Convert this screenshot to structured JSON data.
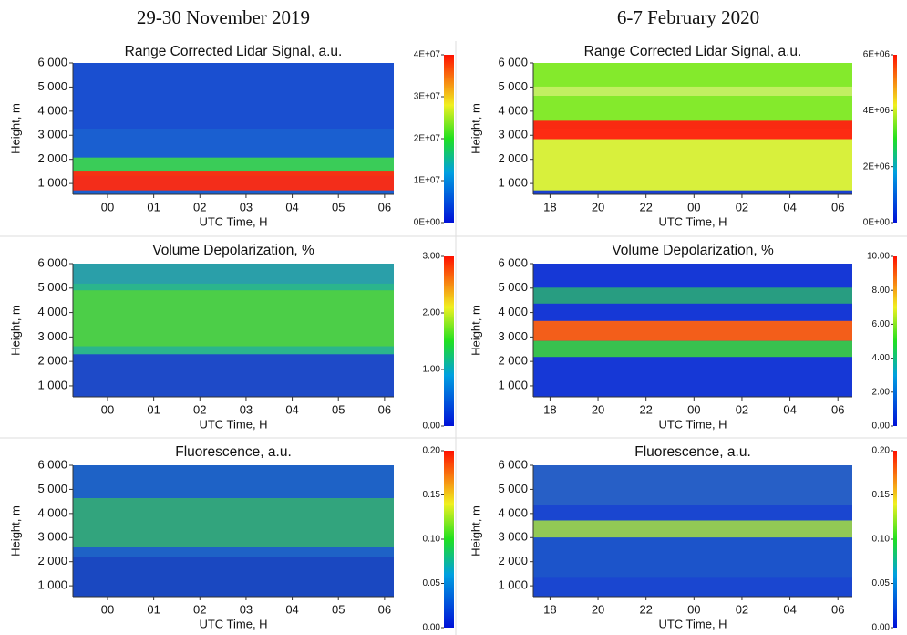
{
  "headers": [
    "29-30 November 2019",
    "6-7 February 2020"
  ],
  "chart_data": [
    {
      "type": "heatmap",
      "title": "Range Corrected Lidar Signal, a.u.",
      "xlabel": "UTC Time, H",
      "ylabel": "Height, m",
      "xlim": [
        -0.75,
        6.2
      ],
      "xticks": [
        {
          "value": 0,
          "label": "00"
        },
        {
          "value": 1,
          "label": "01"
        },
        {
          "value": 2,
          "label": "02"
        },
        {
          "value": 3,
          "label": "03"
        },
        {
          "value": 4,
          "label": "04"
        },
        {
          "value": 5,
          "label": "05"
        },
        {
          "value": 6,
          "label": "06"
        }
      ],
      "ylim": [
        550,
        6000
      ],
      "yticks": [
        {
          "value": 1000,
          "label": "1 000"
        },
        {
          "value": 2000,
          "label": "2 000"
        },
        {
          "value": 3000,
          "label": "3 000"
        },
        {
          "value": 4000,
          "label": "4 000"
        },
        {
          "value": 5000,
          "label": "5 000"
        },
        {
          "value": 6000,
          "label": "6 000"
        }
      ],
      "clim": [
        0,
        40000000
      ],
      "cticks": [
        {
          "value": 0,
          "label": "0E+00"
        },
        {
          "value": 10000000,
          "label": "1E+07"
        },
        {
          "value": 20000000,
          "label": "2E+07"
        },
        {
          "value": 30000000,
          "label": "3E+07"
        },
        {
          "value": 40000000,
          "label": "4E+07"
        }
      ]
    },
    {
      "type": "heatmap",
      "title": "Range Corrected Lidar Signal, a.u.",
      "xlabel": "UTC Time, H",
      "ylabel": "Height, m",
      "xlim": [
        17.3,
        30.6
      ],
      "xticks": [
        18,
        20,
        22,
        {
          "value": 24,
          "label": "00"
        },
        {
          "value": 26,
          "label": "02"
        },
        {
          "value": 28,
          "label": "04"
        },
        {
          "value": 30,
          "label": "06"
        }
      ],
      "ylim": [
        550,
        6000
      ],
      "yticks": [
        {
          "value": 1000,
          "label": "1 000"
        },
        {
          "value": 2000,
          "label": "2 000"
        },
        {
          "value": 3000,
          "label": "3 000"
        },
        {
          "value": 4000,
          "label": "4 000"
        },
        {
          "value": 5000,
          "label": "5 000"
        },
        {
          "value": 6000,
          "label": "6 000"
        }
      ],
      "clim": [
        0,
        6000000
      ],
      "cticks": [
        {
          "value": 0,
          "label": "0E+00"
        },
        {
          "value": 2000000,
          "label": "2E+06"
        },
        {
          "value": 4000000,
          "label": "4E+06"
        },
        {
          "value": 6000000,
          "label": "6E+06"
        }
      ]
    },
    {
      "type": "heatmap",
      "title": "Volume Depolarization, %",
      "xlabel": "UTC Time, H",
      "ylabel": "Height, m",
      "xlim": [
        -0.75,
        6.2
      ],
      "xticks": [
        {
          "value": 0,
          "label": "00"
        },
        {
          "value": 1,
          "label": "01"
        },
        {
          "value": 2,
          "label": "02"
        },
        {
          "value": 3,
          "label": "03"
        },
        {
          "value": 4,
          "label": "04"
        },
        {
          "value": 5,
          "label": "05"
        },
        {
          "value": 6,
          "label": "06"
        }
      ],
      "ylim": [
        550,
        6000
      ],
      "yticks": [
        {
          "value": 1000,
          "label": "1 000"
        },
        {
          "value": 2000,
          "label": "2 000"
        },
        {
          "value": 3000,
          "label": "3 000"
        },
        {
          "value": 4000,
          "label": "4 000"
        },
        {
          "value": 5000,
          "label": "5 000"
        },
        {
          "value": 6000,
          "label": "6 000"
        }
      ],
      "clim": [
        0,
        3
      ],
      "cticks": [
        {
          "value": 0,
          "label": "0.00"
        },
        {
          "value": 1,
          "label": "1.00"
        },
        {
          "value": 2,
          "label": "2.00"
        },
        {
          "value": 3,
          "label": "3.00"
        }
      ]
    },
    {
      "type": "heatmap",
      "title": "Volume Depolarization, %",
      "xlabel": "UTC Time, H",
      "ylabel": "Height, m",
      "xlim": [
        17.3,
        30.6
      ],
      "xticks": [
        18,
        20,
        22,
        {
          "value": 24,
          "label": "00"
        },
        {
          "value": 26,
          "label": "02"
        },
        {
          "value": 28,
          "label": "04"
        },
        {
          "value": 30,
          "label": "06"
        }
      ],
      "ylim": [
        550,
        6000
      ],
      "yticks": [
        {
          "value": 1000,
          "label": "1 000"
        },
        {
          "value": 2000,
          "label": "2 000"
        },
        {
          "value": 3000,
          "label": "3 000"
        },
        {
          "value": 4000,
          "label": "4 000"
        },
        {
          "value": 5000,
          "label": "5 000"
        },
        {
          "value": 6000,
          "label": "6 000"
        }
      ],
      "clim": [
        0,
        10
      ],
      "cticks": [
        {
          "value": 0,
          "label": "0.00"
        },
        {
          "value": 2,
          "label": "2.00"
        },
        {
          "value": 4,
          "label": "4.00"
        },
        {
          "value": 6,
          "label": "6.00"
        },
        {
          "value": 8,
          "label": "8.00"
        },
        {
          "value": 10,
          "label": "10.00"
        }
      ]
    },
    {
      "type": "heatmap",
      "title": "Fluorescence, a.u.",
      "xlabel": "UTC Time, H",
      "ylabel": "Height, m",
      "xlim": [
        -0.75,
        6.2
      ],
      "xticks": [
        {
          "value": 0,
          "label": "00"
        },
        {
          "value": 1,
          "label": "01"
        },
        {
          "value": 2,
          "label": "02"
        },
        {
          "value": 3,
          "label": "03"
        },
        {
          "value": 4,
          "label": "04"
        },
        {
          "value": 5,
          "label": "05"
        },
        {
          "value": 6,
          "label": "06"
        }
      ],
      "ylim": [
        550,
        6000
      ],
      "yticks": [
        {
          "value": 1000,
          "label": "1 000"
        },
        {
          "value": 2000,
          "label": "2 000"
        },
        {
          "value": 3000,
          "label": "3 000"
        },
        {
          "value": 4000,
          "label": "4 000"
        },
        {
          "value": 5000,
          "label": "5 000"
        },
        {
          "value": 6000,
          "label": "6 000"
        }
      ],
      "clim": [
        0,
        0.2
      ],
      "cticks": [
        {
          "value": 0,
          "label": "0.00"
        },
        {
          "value": 0.05,
          "label": "0.05"
        },
        {
          "value": 0.1,
          "label": "0.10"
        },
        {
          "value": 0.15,
          "label": "0.15"
        },
        {
          "value": 0.2,
          "label": "0.20"
        }
      ]
    },
    {
      "type": "heatmap",
      "title": "Fluorescence, a.u.",
      "xlabel": "UTC Time, H",
      "ylabel": "Height, m",
      "xlim": [
        17.3,
        30.6
      ],
      "xticks": [
        18,
        20,
        22,
        {
          "value": 24,
          "label": "00"
        },
        {
          "value": 26,
          "label": "02"
        },
        {
          "value": 28,
          "label": "04"
        },
        {
          "value": 30,
          "label": "06"
        }
      ],
      "ylim": [
        550,
        6000
      ],
      "yticks": [
        {
          "value": 1000,
          "label": "1 000"
        },
        {
          "value": 2000,
          "label": "2 000"
        },
        {
          "value": 3000,
          "label": "3 000"
        },
        {
          "value": 4000,
          "label": "4 000"
        },
        {
          "value": 5000,
          "label": "5 000"
        },
        {
          "value": 6000,
          "label": "6 000"
        }
      ],
      "clim": [
        0,
        0.2
      ],
      "cticks": [
        {
          "value": 0,
          "label": "0.00"
        },
        {
          "value": 0.05,
          "label": "0.05"
        },
        {
          "value": 0.1,
          "label": "0.10"
        },
        {
          "value": 0.15,
          "label": "0.15"
        },
        {
          "value": 0.2,
          "label": "0.20"
        }
      ]
    }
  ]
}
